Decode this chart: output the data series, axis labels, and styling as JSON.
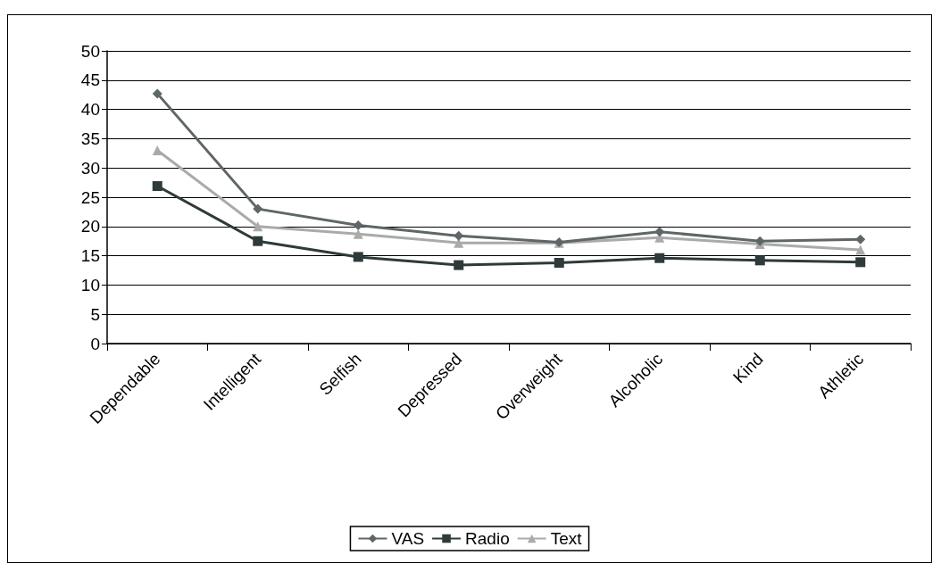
{
  "chart_data": {
    "type": "line",
    "categories": [
      "Dependable",
      "Intelligent",
      "Selfish",
      "Depressed",
      "Overweight",
      "Alcoholic",
      "Kind",
      "Athletic"
    ],
    "series": [
      {
        "name": "VAS",
        "color": "#5f6668",
        "marker": "diamond",
        "values": [
          42.7,
          23,
          20.2,
          18.4,
          17.3,
          19.1,
          17.5,
          17.8
        ]
      },
      {
        "name": "Radio",
        "color": "#2f3a3a",
        "marker": "square",
        "values": [
          26.9,
          17.5,
          14.8,
          13.4,
          13.8,
          14.6,
          14.2,
          13.9
        ]
      },
      {
        "name": "Text",
        "color": "#aaaaaa",
        "marker": "triangle",
        "values": [
          33,
          20,
          18.7,
          17.2,
          17.2,
          18.1,
          17,
          16
        ]
      }
    ],
    "ylim": [
      0,
      50
    ],
    "yticks": [
      0,
      5,
      10,
      15,
      20,
      25,
      30,
      35,
      40,
      45,
      50
    ],
    "grid": "y",
    "legend": "bottom"
  }
}
